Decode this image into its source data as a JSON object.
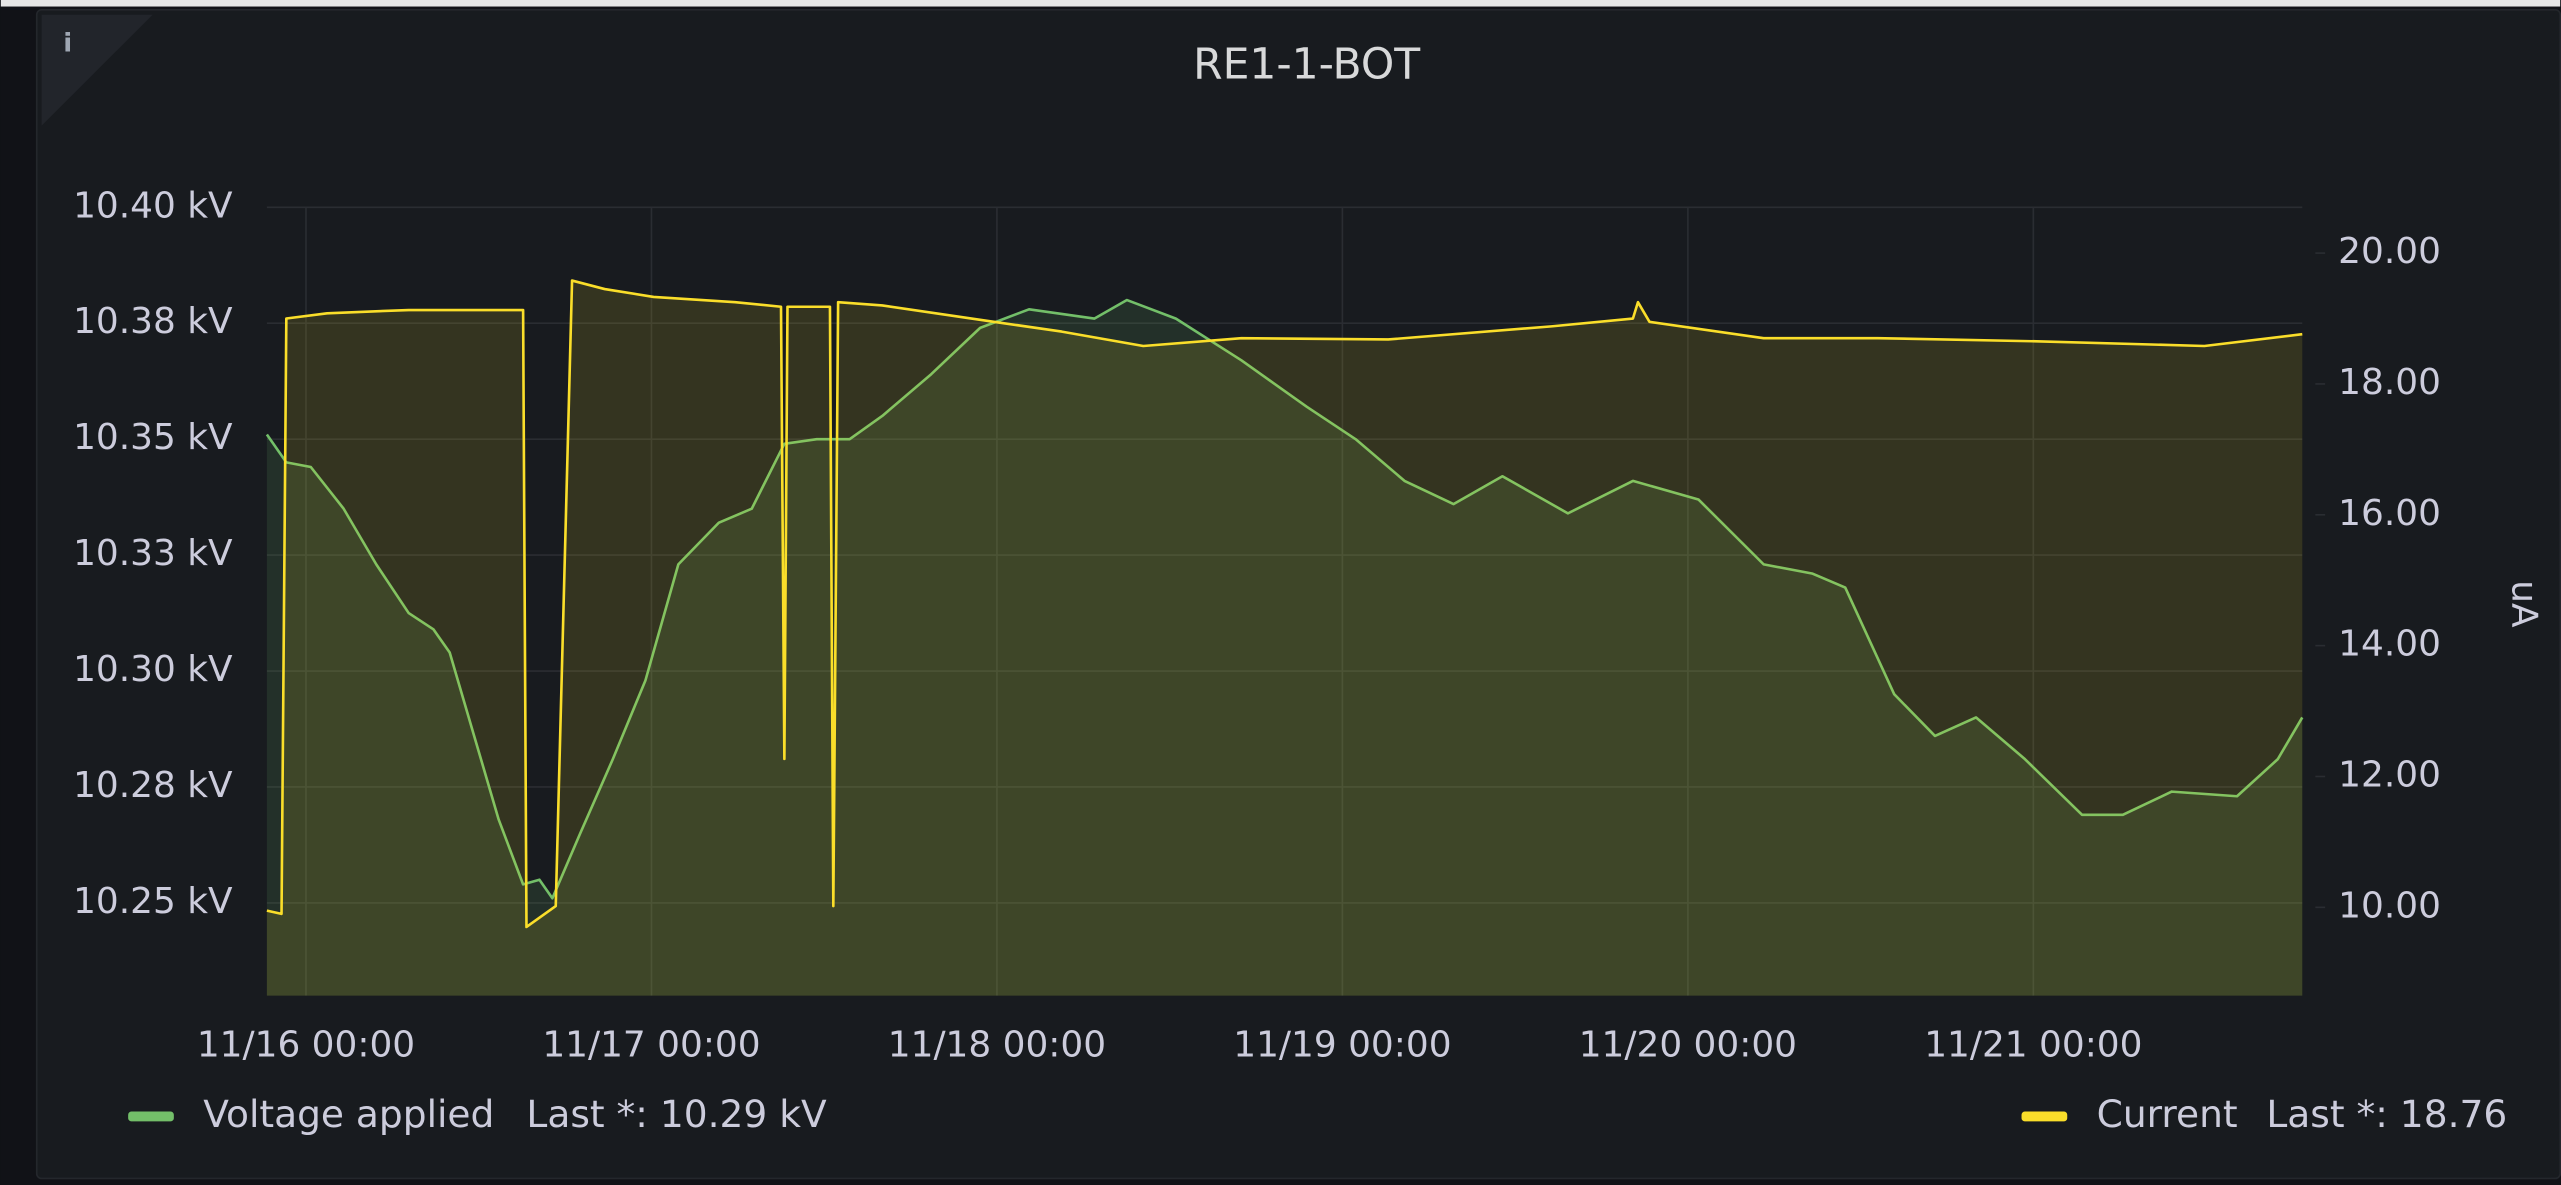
{
  "chart_data": {
    "type": "line",
    "title": "RE1-1-BOT",
    "info_icon": "i",
    "y2_label": "uA",
    "xlim": [
      "11/15 21:17",
      "11/21 18:41"
    ],
    "xticks": [
      "11/16 00:00",
      "11/17 00:00",
      "11/18 00:00",
      "11/19 00:00",
      "11/20 00:00",
      "11/21 00:00"
    ],
    "ylim": [
      10.23,
      10.4
    ],
    "yticks": [
      {
        "value": 10.4,
        "label": "10.40 kV"
      },
      {
        "value": 10.375,
        "label": "10.38 kV"
      },
      {
        "value": 10.35,
        "label": "10.35 kV"
      },
      {
        "value": 10.325,
        "label": "10.33 kV"
      },
      {
        "value": 10.3,
        "label": "10.30 kV"
      },
      {
        "value": 10.275,
        "label": "10.28 kV"
      },
      {
        "value": 10.25,
        "label": "10.25 kV"
      }
    ],
    "y2lim": [
      8.65,
      20.7
    ],
    "y2ticks": [
      {
        "value": 20,
        "label": "20.00"
      },
      {
        "value": 18,
        "label": "18.00"
      },
      {
        "value": 16,
        "label": "16.00"
      },
      {
        "value": 14,
        "label": "14.00"
      },
      {
        "value": 12,
        "label": "12.00"
      },
      {
        "value": 10,
        "label": "10.00"
      }
    ],
    "grid": true,
    "legend_position": "bottom",
    "series": [
      {
        "name": "Voltage applied",
        "color": "#73bf69",
        "axis": "y",
        "legend_stat": "Last *: 10.29 kV",
        "x": [
          "11/15 21:17",
          "11/15 22:38",
          "11/16 00:20",
          "11/16 02:37",
          "11/16 04:53",
          "11/16 07:08",
          "11/16 08:51",
          "11/16 09:59",
          "11/16 11:41",
          "11/16 13:23",
          "11/16 15:05",
          "11/16 16:13",
          "11/16 17:07",
          "11/16 19:03",
          "11/16 21:19",
          "11/16 23:35",
          "11/17 01:52",
          "11/17 04:41",
          "11/17 06:58",
          "11/17 09:14",
          "11/17 11:29",
          "11/17 13:46",
          "11/17 16:02",
          "11/17 19:26",
          "11/17 22:50",
          "11/18 02:14",
          "11/18 06:46",
          "11/18 09:02",
          "11/18 12:26",
          "11/18 16:59",
          "11/18 21:31",
          "11/19 00:55",
          "11/19 04:19",
          "11/19 07:43",
          "11/19 11:07",
          "11/19 15:40",
          "11/19 20:11",
          "11/20 00:44",
          "11/20 05:16",
          "11/20 08:40",
          "11/20 10:56",
          "11/20 14:20",
          "11/20 17:10",
          "11/20 20:01",
          "11/20 23:25",
          "11/21 03:23",
          "11/21 06:13",
          "11/21 09:37",
          "11/21 14:09",
          "11/21 16:59",
          "11/21 18:41"
        ],
        "values": [
          10.351,
          10.345,
          10.344,
          10.335,
          10.323,
          10.3125,
          10.309,
          10.304,
          10.286,
          10.268,
          10.254,
          10.255,
          10.251,
          10.265,
          10.281,
          10.298,
          10.323,
          10.332,
          10.335,
          10.349,
          10.35,
          10.35,
          10.355,
          10.364,
          10.374,
          10.378,
          10.376,
          10.38,
          10.376,
          10.367,
          10.357,
          10.35,
          10.341,
          10.336,
          10.342,
          10.334,
          10.341,
          10.337,
          10.323,
          10.321,
          10.318,
          10.295,
          10.286,
          10.29,
          10.281,
          10.269,
          10.269,
          10.274,
          10.273,
          10.281,
          10.29
        ]
      },
      {
        "name": "Current",
        "color": "#fade2a",
        "axis": "y2",
        "legend_stat": "Last *: 18.76",
        "x": [
          "11/15 21:17",
          "11/15 22:18",
          "11/15 22:38",
          "11/16 01:28",
          "11/16 07:08",
          "11/16 11:41",
          "11/16 15:05",
          "11/16 15:19",
          "11/16 17:21",
          "11/16 18:29",
          "11/16 20:45",
          "11/17 00:09",
          "11/17 05:49",
          "11/17 09:00",
          "11/17 09:14",
          "11/17 09:27",
          "11/17 12:24",
          "11/17 12:38",
          "11/17 12:58",
          "11/17 16:02",
          "11/17 22:50",
          "11/18 04:30",
          "11/18 10:10",
          "11/18 16:59",
          "11/19 03:11",
          "11/19 14:31",
          "11/19 20:11",
          "11/19 20:32",
          "11/19 21:20",
          "11/20 05:16",
          "11/20 13:12",
          "11/21 00:32",
          "11/21 11:53",
          "11/21 18:41"
        ],
        "values": [
          9.95,
          9.9,
          19.0,
          19.08,
          19.13,
          19.13,
          19.13,
          9.7,
          10.02,
          19.58,
          19.45,
          19.33,
          19.25,
          19.18,
          12.27,
          19.18,
          19.18,
          10.02,
          19.25,
          19.2,
          18.98,
          18.8,
          18.58,
          18.7,
          18.68,
          18.88,
          19.0,
          19.25,
          18.95,
          18.7,
          18.7,
          18.65,
          18.58,
          18.76
        ]
      }
    ]
  }
}
